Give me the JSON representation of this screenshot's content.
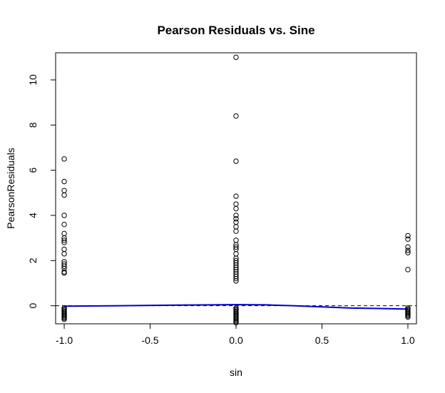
{
  "chart_data": {
    "type": "scatter",
    "title": "Pearson Residuals vs. Sine",
    "xlabel": "sin",
    "ylabel": "PearsonResiduals",
    "xlim": [
      -1.05,
      1.05
    ],
    "ylim": [
      -0.8,
      11.2
    ],
    "xticks": [
      -1.0,
      -0.5,
      0.0,
      0.5,
      1.0
    ],
    "xtick_labels": [
      "-1.0",
      "-0.5",
      "0.0",
      "0.5",
      "1.0"
    ],
    "yticks": [
      0,
      2,
      4,
      6,
      8,
      10
    ],
    "ytick_labels": [
      "0",
      "2",
      "4",
      "6",
      "8",
      "10"
    ],
    "grid": false,
    "legend": "none",
    "reference_line": {
      "y": 0,
      "style": "dashed",
      "color": "#000000"
    },
    "smooth_line": {
      "color": "#0000cc",
      "x": [
        -1.0,
        -0.67,
        -0.33,
        0.0,
        0.17,
        0.33,
        0.5,
        0.67,
        0.83,
        1.0
      ],
      "y": [
        -0.02,
        0.0,
        0.03,
        0.05,
        0.04,
        0.0,
        -0.05,
        -0.1,
        -0.12,
        -0.15
      ]
    },
    "series": [
      {
        "marker": "open-circle",
        "color": "#000000",
        "points": [
          [
            -1,
            6.5
          ],
          [
            -1,
            5.5
          ],
          [
            -1,
            5.1
          ],
          [
            -1,
            4.9
          ],
          [
            -1,
            4.0
          ],
          [
            -1,
            3.6
          ],
          [
            -1,
            3.2
          ],
          [
            -1,
            3.0
          ],
          [
            -1,
            2.9
          ],
          [
            -1,
            2.8
          ],
          [
            -1,
            2.5
          ],
          [
            -1,
            2.3
          ],
          [
            -1,
            1.95
          ],
          [
            -1,
            1.85
          ],
          [
            -1,
            1.75
          ],
          [
            -1,
            1.65
          ],
          [
            -1,
            1.5
          ],
          [
            -1,
            1.45
          ],
          [
            -1,
            -0.1
          ],
          [
            -1,
            -0.15
          ],
          [
            -1,
            -0.2
          ],
          [
            -1,
            -0.25
          ],
          [
            -1,
            -0.3
          ],
          [
            -1,
            -0.35
          ],
          [
            -1,
            -0.4
          ],
          [
            -1,
            -0.45
          ],
          [
            -1,
            -0.5
          ],
          [
            -1,
            -0.55
          ],
          [
            -1,
            -0.6
          ],
          [
            0,
            11.0
          ],
          [
            0,
            8.4
          ],
          [
            0,
            6.4
          ],
          [
            0,
            4.85
          ],
          [
            0,
            4.5
          ],
          [
            0,
            4.3
          ],
          [
            0,
            4.0
          ],
          [
            0,
            3.85
          ],
          [
            0,
            3.7
          ],
          [
            0,
            3.5
          ],
          [
            0,
            3.3
          ],
          [
            0,
            2.9
          ],
          [
            0,
            2.7
          ],
          [
            0,
            2.6
          ],
          [
            0,
            2.5
          ],
          [
            0,
            2.3
          ],
          [
            0,
            2.1
          ],
          [
            0,
            2.0
          ],
          [
            0,
            1.9
          ],
          [
            0,
            1.8
          ],
          [
            0,
            1.7
          ],
          [
            0,
            1.6
          ],
          [
            0,
            1.5
          ],
          [
            0,
            1.4
          ],
          [
            0,
            1.3
          ],
          [
            0,
            1.2
          ],
          [
            0,
            1.1
          ],
          [
            0,
            -0.1
          ],
          [
            0,
            -0.15
          ],
          [
            0,
            -0.2
          ],
          [
            0,
            -0.25
          ],
          [
            0,
            -0.3
          ],
          [
            0,
            -0.35
          ],
          [
            0,
            -0.4
          ],
          [
            0,
            -0.45
          ],
          [
            0,
            -0.5
          ],
          [
            0,
            -0.55
          ],
          [
            0,
            -0.6
          ],
          [
            0,
            -0.65
          ],
          [
            0,
            -0.7
          ],
          [
            0,
            -0.75
          ],
          [
            1,
            3.1
          ],
          [
            1,
            2.95
          ],
          [
            1,
            2.6
          ],
          [
            1,
            2.45
          ],
          [
            1,
            2.35
          ],
          [
            1,
            1.6
          ],
          [
            1,
            -0.1
          ],
          [
            1,
            -0.15
          ],
          [
            1,
            -0.2
          ],
          [
            1,
            -0.25
          ],
          [
            1,
            -0.3
          ],
          [
            1,
            -0.35
          ],
          [
            1,
            -0.4
          ],
          [
            1,
            -0.45
          ],
          [
            1,
            -0.5
          ]
        ]
      }
    ]
  }
}
